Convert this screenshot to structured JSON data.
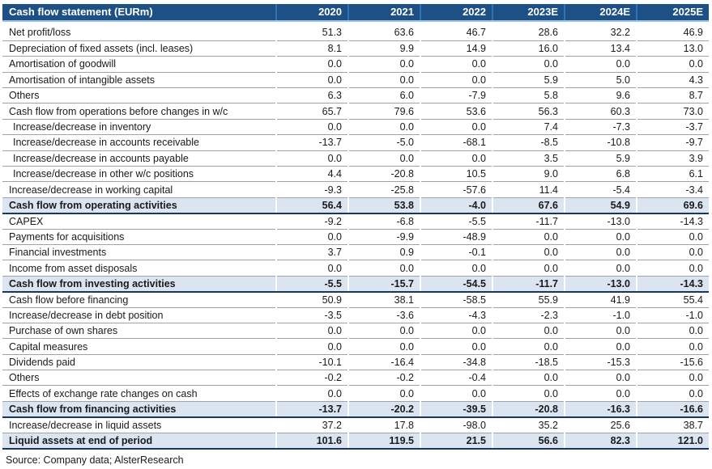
{
  "table": {
    "title": "Cash flow statement (EURm)",
    "years": [
      "2020",
      "2021",
      "2022",
      "2023E",
      "2024E",
      "2025E"
    ],
    "rows": [
      {
        "label": "Net profit/loss",
        "values": [
          "51.3",
          "63.6",
          "46.7",
          "28.6",
          "32.2",
          "46.9"
        ],
        "style": "normal",
        "indent": false
      },
      {
        "label": "Depreciation of fixed assets (incl. leases)",
        "values": [
          "8.1",
          "9.9",
          "14.9",
          "16.0",
          "13.4",
          "13.0"
        ],
        "style": "normal",
        "indent": false
      },
      {
        "label": "Amortisation of goodwill",
        "values": [
          "0.0",
          "0.0",
          "0.0",
          "0.0",
          "0.0",
          "0.0"
        ],
        "style": "normal",
        "indent": false
      },
      {
        "label": "Amortisation of intangible assets",
        "values": [
          "0.0",
          "0.0",
          "0.0",
          "5.9",
          "5.0",
          "4.3"
        ],
        "style": "normal",
        "indent": false
      },
      {
        "label": "Others",
        "values": [
          "6.3",
          "6.0",
          "-7.9",
          "5.8",
          "9.6",
          "8.7"
        ],
        "style": "normal",
        "indent": false
      },
      {
        "label": "Cash flow from operations before changes in w/c",
        "values": [
          "65.7",
          "79.6",
          "53.6",
          "56.3",
          "60.3",
          "73.0"
        ],
        "style": "normal",
        "indent": false
      },
      {
        "label": "Increase/decrease in inventory",
        "values": [
          "0.0",
          "0.0",
          "0.0",
          "7.4",
          "-7.3",
          "-3.7"
        ],
        "style": "normal",
        "indent": true
      },
      {
        "label": "Increase/decrease in accounts receivable",
        "values": [
          "-13.7",
          "-5.0",
          "-68.1",
          "-8.5",
          "-10.8",
          "-9.7"
        ],
        "style": "normal",
        "indent": true
      },
      {
        "label": "Increase/decrease in accounts payable",
        "values": [
          "0.0",
          "0.0",
          "0.0",
          "3.5",
          "5.9",
          "3.9"
        ],
        "style": "normal",
        "indent": true
      },
      {
        "label": "Increase/decrease in other w/c positions",
        "values": [
          "4.4",
          "-20.8",
          "10.5",
          "9.0",
          "6.8",
          "6.1"
        ],
        "style": "normal",
        "indent": true
      },
      {
        "label": "Increase/decrease in working capital",
        "values": [
          "-9.3",
          "-25.8",
          "-57.6",
          "11.4",
          "-5.4",
          "-3.4"
        ],
        "style": "normal",
        "indent": false
      },
      {
        "label": "Cash flow from operating activities",
        "values": [
          "56.4",
          "53.8",
          "-4.0",
          "67.6",
          "54.9",
          "69.6"
        ],
        "style": "subtotal",
        "indent": false
      },
      {
        "label": "CAPEX",
        "values": [
          "-9.2",
          "-6.8",
          "-5.5",
          "-11.7",
          "-13.0",
          "-14.3"
        ],
        "style": "normal",
        "indent": false
      },
      {
        "label": "Payments for acquisitions",
        "values": [
          "0.0",
          "-9.9",
          "-48.9",
          "0.0",
          "0.0",
          "0.0"
        ],
        "style": "normal",
        "indent": false
      },
      {
        "label": "Financial investments",
        "values": [
          "3.7",
          "0.9",
          "-0.1",
          "0.0",
          "0.0",
          "0.0"
        ],
        "style": "normal",
        "indent": false
      },
      {
        "label": "Income from asset disposals",
        "values": [
          "0.0",
          "0.0",
          "0.0",
          "0.0",
          "0.0",
          "0.0"
        ],
        "style": "normal",
        "indent": false
      },
      {
        "label": "Cash flow from investing activities",
        "values": [
          "-5.5",
          "-15.7",
          "-54.5",
          "-11.7",
          "-13.0",
          "-14.3"
        ],
        "style": "subtotal",
        "indent": false
      },
      {
        "label": "Cash flow before financing",
        "values": [
          "50.9",
          "38.1",
          "-58.5",
          "55.9",
          "41.9",
          "55.4"
        ],
        "style": "normal",
        "indent": false
      },
      {
        "label": "Increase/decrease in debt position",
        "values": [
          "-3.5",
          "-3.6",
          "-4.3",
          "-2.3",
          "-1.0",
          "-1.0"
        ],
        "style": "normal",
        "indent": false
      },
      {
        "label": "Purchase of own shares",
        "values": [
          "0.0",
          "0.0",
          "0.0",
          "0.0",
          "0.0",
          "0.0"
        ],
        "style": "normal",
        "indent": false
      },
      {
        "label": "Capital measures",
        "values": [
          "0.0",
          "0.0",
          "0.0",
          "0.0",
          "0.0",
          "0.0"
        ],
        "style": "normal",
        "indent": false
      },
      {
        "label": "Dividends paid",
        "values": [
          "-10.1",
          "-16.4",
          "-34.8",
          "-18.5",
          "-15.3",
          "-15.6"
        ],
        "style": "normal",
        "indent": false
      },
      {
        "label": "Others",
        "values": [
          "-0.2",
          "-0.2",
          "-0.4",
          "0.0",
          "0.0",
          "0.0"
        ],
        "style": "normal",
        "indent": false
      },
      {
        "label": "Effects of exchange rate changes on cash",
        "values": [
          "0.0",
          "0.0",
          "0.0",
          "0.0",
          "0.0",
          "0.0"
        ],
        "style": "normal",
        "indent": false
      },
      {
        "label": "Cash flow from financing activities",
        "values": [
          "-13.7",
          "-20.2",
          "-39.5",
          "-20.8",
          "-16.3",
          "-16.6"
        ],
        "style": "subtotal",
        "indent": false
      },
      {
        "label": "Increase/decrease in liquid assets",
        "values": [
          "37.2",
          "17.8",
          "-98.0",
          "35.2",
          "25.6",
          "38.7"
        ],
        "style": "normal",
        "indent": false
      },
      {
        "label": "Liquid assets at end of period",
        "values": [
          "101.6",
          "119.5",
          "21.5",
          "56.6",
          "82.3",
          "121.0"
        ],
        "style": "subtotal",
        "indent": false
      }
    ]
  },
  "source": "Source: Company data; AlsterResearch",
  "colors": {
    "header_bg": "#1d5084",
    "header_separator": "#2e75b6",
    "header_underline": "#9dc3e6",
    "row_border": "#a3a3a3",
    "subtotal_bg": "#dbe5f1",
    "subtotal_border": "#17375e",
    "text": "#1a1a1a"
  }
}
